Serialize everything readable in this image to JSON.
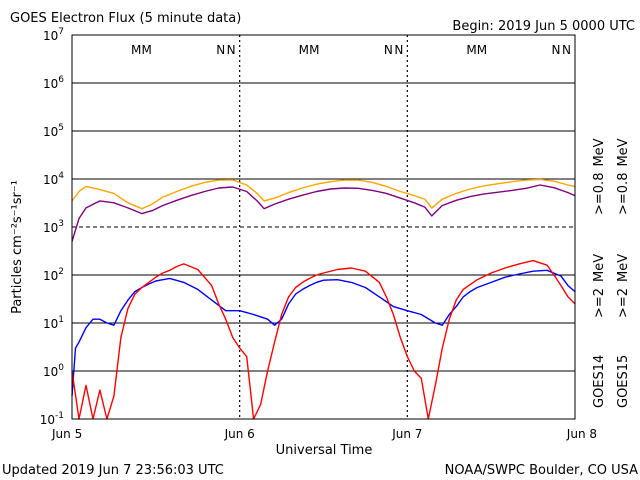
{
  "header": {
    "title": "GOES Electron Flux (5 minute data)",
    "begin": "Begin: 2019 Jun 5 0000 UTC"
  },
  "footer": {
    "updated": "Updated 2019 Jun  7 23:56:03 UTC",
    "source": "NOAA/SWPC Boulder, CO USA"
  },
  "colors": {
    "goes14_ge2": "#0000ff",
    "goes15_ge2": "#ff0000",
    "goes14_ge08": "#800080",
    "goes15_ge08": "#ffa500",
    "gridline": "#000000"
  },
  "chart_data": {
    "type": "line",
    "xlabel": "Universal Time",
    "ylabel": "Particles cm⁻²s⁻¹sr⁻¹",
    "x_unit": "hours since 2019 Jun 5 0000 UTC",
    "xlim": [
      0,
      72
    ],
    "ylim": [
      0.1,
      10000000
    ],
    "yscale": "log",
    "x_ticks": [
      {
        "x": 0,
        "label": "Jun 5"
      },
      {
        "x": 24,
        "label": "Jun 6"
      },
      {
        "x": 48,
        "label": "Jun 7"
      },
      {
        "x": 72,
        "label": "Jun 8"
      }
    ],
    "y_ticks": [
      {
        "exp": -1,
        "label": "10"
      },
      {
        "exp": 0,
        "label": "10"
      },
      {
        "exp": 1,
        "label": "10"
      },
      {
        "exp": 2,
        "label": "10"
      },
      {
        "exp": 3,
        "label": "10"
      },
      {
        "exp": 4,
        "label": "10"
      },
      {
        "exp": 5,
        "label": "10"
      },
      {
        "exp": 6,
        "label": "10"
      },
      {
        "exp": 7,
        "label": "10"
      }
    ],
    "markers": [
      {
        "x": 10.5,
        "label": "M",
        "color": "#0000ff"
      },
      {
        "x": 12.0,
        "label": "M",
        "color": "#ff0000"
      },
      {
        "x": 22.5,
        "label": "N",
        "color": "#0000ff"
      },
      {
        "x": 24.0,
        "label": "N",
        "color": "#ff0000"
      },
      {
        "x": 34.5,
        "label": "M",
        "color": "#0000ff"
      },
      {
        "x": 36.0,
        "label": "M",
        "color": "#ff0000"
      },
      {
        "x": 46.5,
        "label": "N",
        "color": "#0000ff"
      },
      {
        "x": 48.0,
        "label": "N",
        "color": "#ff0000"
      },
      {
        "x": 58.5,
        "label": "M",
        "color": "#0000ff"
      },
      {
        "x": 60.0,
        "label": "M",
        "color": "#ff0000"
      },
      {
        "x": 70.5,
        "label": "N",
        "color": "#0000ff"
      },
      {
        "x": 72.0,
        "label": "N",
        "color": "#ff0000"
      }
    ],
    "legend": [
      {
        "group": "GOES14",
        "label": ">=2",
        "unit": "MeV",
        "color": "#0000ff"
      },
      {
        "group": "GOES14",
        "label": ">=0.8",
        "unit": "MeV",
        "color": "#800080"
      },
      {
        "group": "GOES15",
        "label": ">=2",
        "unit": "MeV",
        "color": "#ff0000"
      },
      {
        "group": "GOES15",
        "label": ">=0.8",
        "unit": "MeV",
        "color": "#ffa500"
      }
    ],
    "legend_placement": "right",
    "series": [
      {
        "name": "GOES14 >=0.8 MeV",
        "color": "#800080",
        "x": [
          0,
          1,
          2,
          4,
          6,
          8,
          10,
          11.5,
          13,
          15,
          17,
          19,
          21,
          23,
          25,
          26.5,
          27.5,
          29,
          31,
          33,
          35,
          37,
          39,
          41,
          43,
          45,
          47,
          49,
          50.5,
          51.5,
          53,
          55,
          57,
          59,
          61,
          63,
          65,
          67,
          69,
          71,
          72
        ],
        "y": [
          500,
          1500,
          2500,
          3500,
          3200,
          2500,
          1900,
          2200,
          2800,
          3600,
          4500,
          5500,
          6500,
          6800,
          5500,
          3500,
          2400,
          3000,
          3800,
          4600,
          5500,
          6200,
          6500,
          6400,
          5800,
          5000,
          4000,
          3200,
          2600,
          1700,
          2800,
          3600,
          4300,
          4900,
          5300,
          5800,
          6400,
          7500,
          6600,
          5200,
          4500
        ]
      },
      {
        "name": "GOES15 >=0.8 MeV",
        "color": "#ffa500",
        "x": [
          0,
          1,
          2,
          4,
          6,
          8,
          10,
          11.5,
          13,
          15,
          17,
          19,
          21,
          23,
          25,
          26.5,
          27.5,
          29,
          31,
          33,
          35,
          37,
          39,
          41,
          43,
          45,
          47,
          49,
          50.5,
          51.5,
          53,
          55,
          57,
          59,
          61,
          63,
          65,
          67,
          69,
          71,
          72
        ],
        "y": [
          3500,
          5500,
          7000,
          6000,
          5000,
          3200,
          2400,
          3000,
          4200,
          5500,
          7000,
          8500,
          9500,
          9600,
          7500,
          5000,
          3500,
          4000,
          5200,
          6500,
          7800,
          8800,
          9500,
          9500,
          8500,
          7000,
          5500,
          4500,
          3800,
          2500,
          3800,
          5000,
          6200,
          7200,
          8000,
          8800,
          9500,
          9800,
          9000,
          7500,
          7000
        ]
      },
      {
        "name": "GOES14 >=2 MeV",
        "color": "#0000ff",
        "x": [
          0,
          0.5,
          1,
          2,
          3,
          4,
          5,
          6,
          7,
          8,
          9,
          10,
          11,
          12,
          13,
          14,
          16,
          18,
          20,
          22,
          24,
          26,
          28,
          29,
          30,
          31,
          32,
          33,
          34,
          35,
          36,
          38,
          40,
          42,
          44,
          46,
          48,
          50,
          52,
          53,
          54,
          55,
          56,
          57,
          58,
          60,
          62,
          64,
          66,
          68,
          70,
          71,
          72
        ],
        "y": [
          0.3,
          3,
          4,
          8,
          12,
          12,
          10,
          9,
          18,
          30,
          45,
          55,
          65,
          75,
          80,
          85,
          70,
          50,
          30,
          18,
          18,
          15,
          12,
          9,
          12,
          25,
          40,
          50,
          60,
          70,
          78,
          80,
          70,
          55,
          35,
          22,
          18,
          15,
          10,
          9,
          15,
          22,
          35,
          45,
          55,
          70,
          90,
          105,
          120,
          125,
          95,
          60,
          45
        ]
      },
      {
        "name": "GOES15 >=2 MeV",
        "color": "#ff0000",
        "x": [
          0,
          1,
          2,
          3,
          4,
          5,
          6,
          7,
          8,
          9,
          10,
          11,
          12,
          13,
          14,
          15,
          16,
          18,
          20,
          21,
          22,
          23,
          24,
          25,
          26,
          27,
          28,
          29,
          30,
          31,
          32,
          33,
          34,
          35,
          36,
          38,
          40,
          42,
          44,
          45,
          46,
          47,
          48,
          49,
          50,
          51,
          52,
          53,
          54,
          55,
          56,
          58,
          60,
          62,
          64,
          66,
          68,
          69,
          70,
          71,
          72
        ],
        "y": [
          1,
          0.1,
          0.5,
          0.1,
          0.4,
          0.1,
          0.3,
          5,
          20,
          40,
          55,
          70,
          90,
          110,
          125,
          150,
          170,
          130,
          60,
          25,
          12,
          5,
          3,
          2,
          0.1,
          0.2,
          1,
          4,
          15,
          35,
          55,
          70,
          85,
          100,
          110,
          130,
          140,
          120,
          70,
          35,
          15,
          5,
          2,
          1,
          0.7,
          0.1,
          0.5,
          3,
          12,
          30,
          50,
          80,
          110,
          140,
          170,
          200,
          160,
          100,
          60,
          35,
          25
        ]
      }
    ]
  }
}
